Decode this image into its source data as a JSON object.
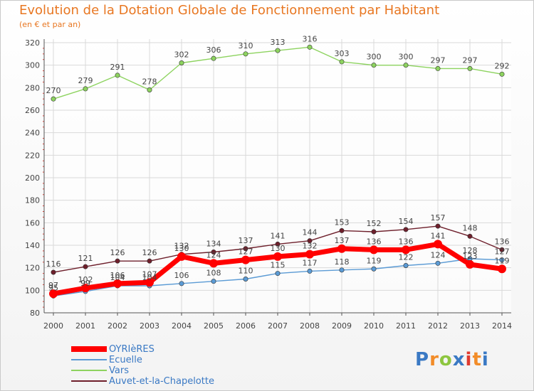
{
  "chart_data": {
    "type": "line",
    "title": "Evolution de la Dotation Globale de Fonctionnement par Habitant",
    "subtitle": "(en € et par an)",
    "xlabel": "",
    "ylabel": "",
    "x": [
      "2000",
      "2001",
      "2002",
      "2003",
      "2004",
      "2005",
      "2006",
      "2007",
      "2008",
      "2009",
      "2010",
      "2011",
      "2012",
      "2013",
      "2014"
    ],
    "ylim": [
      80,
      320
    ],
    "yticks": [
      "80",
      "100",
      "120",
      "140",
      "160",
      "180",
      "200",
      "220",
      "240",
      "260",
      "280",
      "300",
      "320"
    ],
    "legend_position": "bottom-left",
    "series": [
      {
        "name": "OYRIèRES",
        "color": "#ff0000",
        "values": [
          97,
          102,
          106,
          107,
          130,
          124,
          127,
          130,
          132,
          137,
          136,
          136,
          141,
          123,
          119
        ]
      },
      {
        "name": "Ecuelle",
        "color": "#5b9bd5",
        "values": [
          95,
          99,
          104,
          104,
          106,
          108,
          110,
          115,
          117,
          118,
          119,
          122,
          124,
          128,
          127
        ]
      },
      {
        "name": "Vars",
        "color": "#8dd35f",
        "values": [
          270,
          279,
          291,
          278,
          302,
          306,
          310,
          313,
          316,
          303,
          300,
          300,
          297,
          297,
          292
        ]
      },
      {
        "name": "Auvet-et-la-Chapelotte",
        "color": "#6e1f2b",
        "values": [
          116,
          121,
          126,
          126,
          132,
          134,
          137,
          141,
          144,
          153,
          152,
          154,
          157,
          148,
          136
        ]
      }
    ]
  },
  "logo": {
    "letters": [
      "P",
      "r",
      "o",
      "x",
      "i",
      "t",
      "i"
    ],
    "colors": [
      "#3a79c4",
      "#f28c28",
      "#8dc63f",
      "#3a79c4",
      "#e03c31",
      "#f28c28",
      "#3a79c4"
    ]
  }
}
